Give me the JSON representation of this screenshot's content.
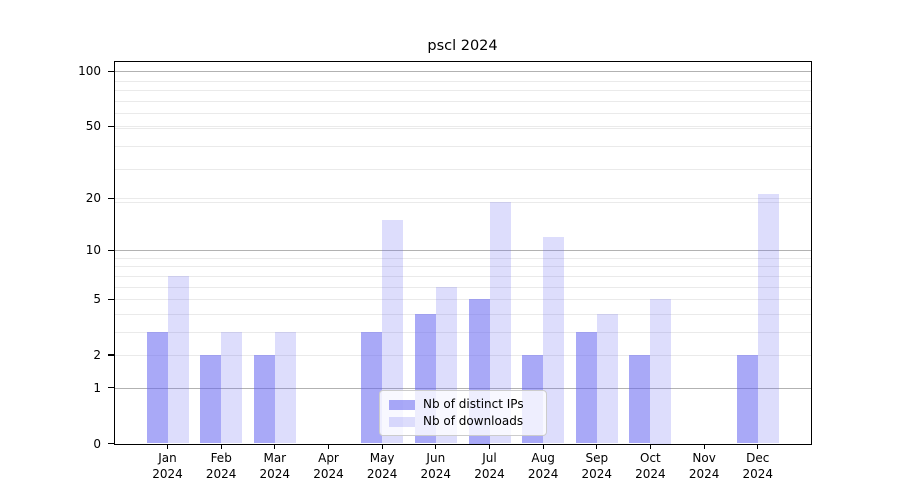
{
  "chart_data": {
    "type": "bar",
    "title": "pscl 2024",
    "x": {
      "months": [
        "Jan",
        "Feb",
        "Mar",
        "Apr",
        "May",
        "Jun",
        "Jul",
        "Aug",
        "Sep",
        "Oct",
        "Nov",
        "Dec"
      ],
      "year": "2024"
    },
    "y_axis": {
      "scale": "log1p",
      "tick_labels": [
        "100",
        "50",
        "20",
        "10",
        "5",
        "2",
        "1",
        "0"
      ],
      "tick_values": [
        100,
        50,
        20,
        10,
        5,
        2,
        1,
        0
      ],
      "ylim": [
        0,
        112
      ],
      "grid": true
    },
    "series": [
      {
        "name": "Nb of distinct IPs",
        "key": "distinct-ips",
        "color": "rgba(98,98,240,0.55)",
        "values": [
          3,
          2,
          2,
          0,
          3,
          4,
          5,
          2,
          3,
          2,
          0,
          2
        ]
      },
      {
        "name": "Nb of downloads",
        "key": "downloads",
        "color": "rgba(98,98,240,0.22)",
        "values": [
          7,
          3,
          3,
          0,
          15,
          6,
          19,
          12,
          4,
          5,
          0,
          21
        ]
      }
    ],
    "legend": {
      "position": "lower center"
    }
  }
}
